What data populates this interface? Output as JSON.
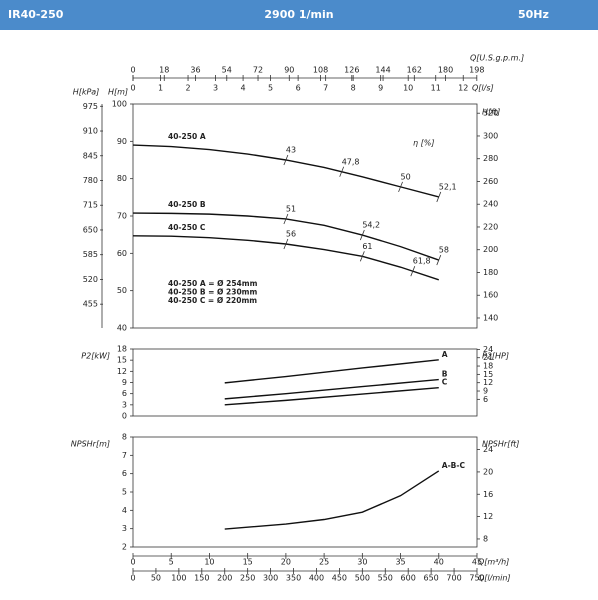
{
  "header": {
    "model": "IR40-250",
    "speed": "2900 1/min",
    "frequency": "50Hz"
  },
  "x_axes": [
    {
      "label": "Q[U.S.g.p.m.]",
      "lim": [
        0,
        198.1
      ],
      "ticks": [
        0,
        18,
        36,
        54,
        72,
        90,
        108,
        126,
        144,
        162,
        180,
        198
      ]
    },
    {
      "label": "Q[l/s]",
      "lim": [
        0,
        12.5
      ],
      "ticks": [
        0,
        1,
        2,
        3,
        4,
        5,
        6,
        7,
        8,
        9,
        10,
        11,
        12
      ]
    },
    {
      "label": "Q[m³/h]",
      "lim": [
        0,
        45
      ],
      "ticks": [
        0,
        5,
        10,
        15,
        20,
        25,
        30,
        35,
        40,
        45
      ]
    },
    {
      "label": "Q[l/min]",
      "lim": [
        0,
        750
      ],
      "ticks": [
        0,
        50,
        100,
        150,
        200,
        250,
        300,
        350,
        400,
        450,
        500,
        550,
        600,
        650,
        700,
        750
      ]
    }
  ],
  "chart_data": [
    {
      "type": "line",
      "y_axes": [
        {
          "label": "H[m]",
          "side": "left",
          "lim": [
            40,
            100
          ],
          "ticks": [
            40,
            50,
            60,
            70,
            80,
            90,
            100
          ]
        },
        {
          "label": "H[kPa]",
          "side": "outer-left",
          "lim": [
            392.4,
            981
          ],
          "ticks": [
            455,
            520,
            585,
            650,
            715,
            780,
            845,
            910,
            975
          ]
        },
        {
          "label": "H[ft]",
          "side": "right",
          "lim": [
            131.2,
            328.1
          ],
          "ticks": [
            140,
            160,
            180,
            200,
            220,
            240,
            260,
            280,
            300,
            320
          ]
        }
      ],
      "efficiency_label": "η [%]",
      "series": [
        {
          "name": "40-250 A",
          "x": [
            0,
            5,
            10,
            15,
            20,
            25,
            30,
            35,
            40
          ],
          "values": [
            89,
            88.6,
            87.8,
            86.6,
            85,
            83,
            80.5,
            77.8,
            75.1
          ],
          "eta": {
            "x": [
              20,
              27.3,
              35,
              40
            ],
            "values": [
              43,
              47.8,
              50,
              52.1
            ],
            "value_labels": [
              "43",
              "47,8",
              "50",
              "52,1"
            ]
          }
        },
        {
          "name": "40-250 B",
          "x": [
            0,
            5,
            10,
            15,
            20,
            25,
            30,
            35,
            40
          ],
          "values": [
            70.8,
            70.7,
            70.5,
            70,
            69.2,
            67.5,
            64.9,
            61.8,
            58.2
          ],
          "eta": {
            "x": [
              20,
              30,
              40
            ],
            "values": [
              51,
              54.2,
              58
            ],
            "value_labels": [
              "51",
              "54,2",
              "58"
            ]
          }
        },
        {
          "name": "40-250 C",
          "x": [
            0,
            5,
            10,
            15,
            20,
            25,
            30,
            35,
            40
          ],
          "values": [
            64.7,
            64.6,
            64.2,
            63.5,
            62.5,
            61,
            59.2,
            56.3,
            52.9
          ],
          "eta": {
            "x": [
              20,
              30,
              36.6
            ],
            "values": [
              56,
              61,
              61.8
            ],
            "value_labels": [
              "56",
              "61",
              "61,8"
            ]
          }
        }
      ],
      "notes": [
        "40-250 A = Ø 254mm",
        "40-250 B = Ø 230mm",
        "40-250 C = Ø 220mm"
      ]
    },
    {
      "type": "line",
      "y_axes": [
        {
          "label": "P2[kW]",
          "side": "left",
          "lim": [
            0,
            18
          ],
          "ticks": [
            0,
            3,
            6,
            9,
            12,
            15,
            18
          ]
        },
        {
          "label": "P2[HP]",
          "side": "right",
          "lim": [
            0,
            24.14
          ],
          "ticks": [
            6,
            9,
            12,
            15,
            18,
            21,
            24
          ]
        }
      ],
      "series": [
        {
          "name": "A",
          "x": [
            12,
            20,
            30,
            40
          ],
          "values": [
            8.9,
            10.6,
            12.9,
            15.1
          ]
        },
        {
          "name": "B",
          "x": [
            12,
            20,
            30,
            40
          ],
          "values": [
            4.6,
            6.0,
            7.9,
            9.8
          ]
        },
        {
          "name": "C",
          "x": [
            12,
            20,
            30,
            40
          ],
          "values": [
            3.0,
            4.2,
            5.9,
            7.6
          ]
        }
      ]
    },
    {
      "type": "line",
      "y_axes": [
        {
          "label": "NPSHr[m]",
          "side": "left",
          "lim": [
            2,
            8
          ],
          "ticks": [
            2,
            3,
            4,
            5,
            6,
            7,
            8
          ]
        },
        {
          "label": "NPSHr[ft]",
          "side": "right",
          "lim": [
            6.56,
            26.25
          ],
          "ticks": [
            8,
            12,
            16,
            20,
            24
          ]
        }
      ],
      "series": [
        {
          "name": "A-B-C",
          "x": [
            12,
            20,
            25,
            30,
            35,
            40
          ],
          "values": [
            2.98,
            3.25,
            3.5,
            3.9,
            4.8,
            6.15
          ]
        }
      ]
    }
  ]
}
